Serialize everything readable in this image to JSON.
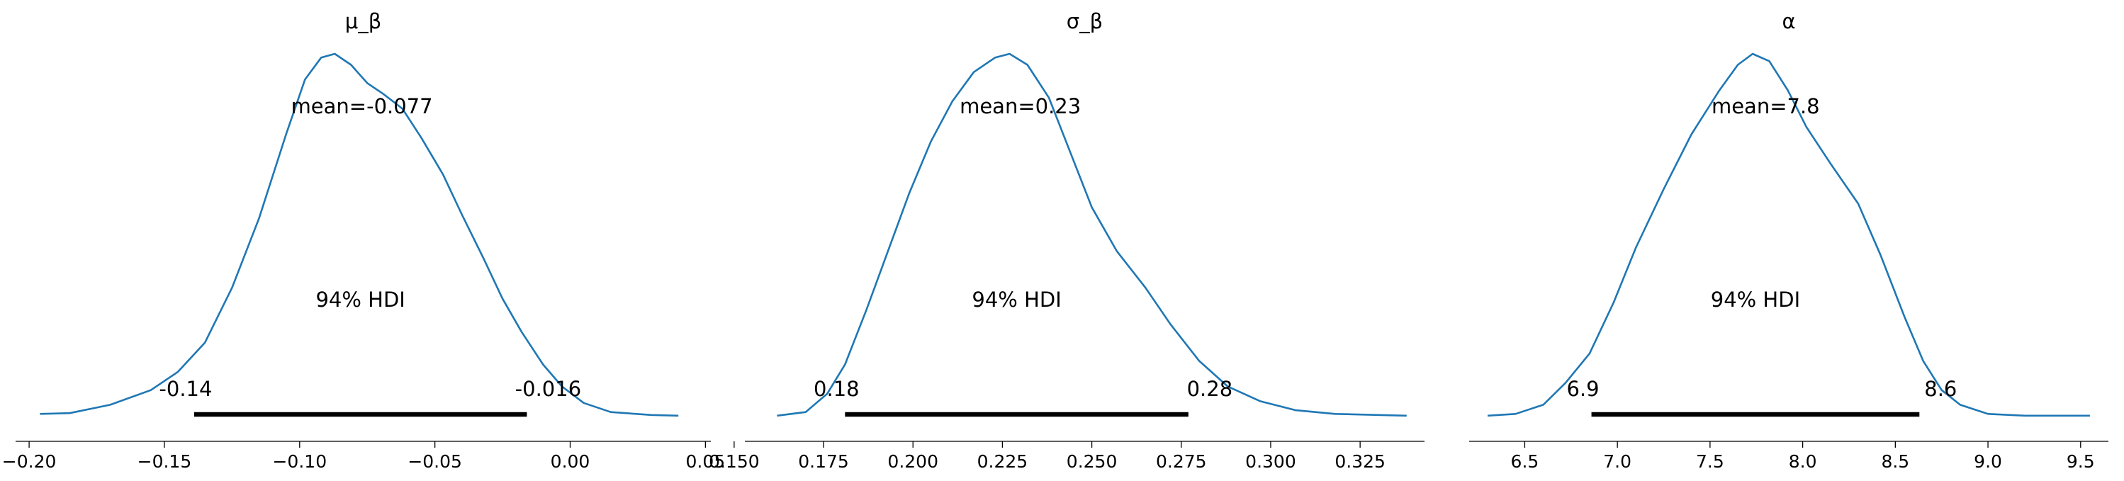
{
  "chart_data": [
    {
      "type": "area",
      "title": "μ_β",
      "xlim": [
        -0.205,
        0.052
      ],
      "ticks": [
        {
          "v": -0.2,
          "label": "−0.20"
        },
        {
          "v": -0.15,
          "label": "−0.15"
        },
        {
          "v": -0.1,
          "label": "−0.10"
        },
        {
          "v": -0.05,
          "label": "−0.05"
        },
        {
          "v": 0.0,
          "label": "0.00"
        },
        {
          "v": 0.05,
          "label": "0.05"
        }
      ],
      "mean": -0.077,
      "mean_label": "mean=-0.077",
      "hdi": [
        -0.139,
        -0.016
      ],
      "hdi_prob_label": "94% HDI",
      "hdi_low_label": "-0.14",
      "hdi_high_label": "-0.016",
      "line_color": "#1f77b4",
      "density": [
        [
          -0.196,
          0.015
        ],
        [
          -0.185,
          0.017
        ],
        [
          -0.17,
          0.04
        ],
        [
          -0.155,
          0.08
        ],
        [
          -0.145,
          0.13
        ],
        [
          -0.135,
          0.21
        ],
        [
          -0.125,
          0.36
        ],
        [
          -0.115,
          0.55
        ],
        [
          -0.105,
          0.78
        ],
        [
          -0.098,
          0.93
        ],
        [
          -0.092,
          0.99
        ],
        [
          -0.087,
          1.0
        ],
        [
          -0.081,
          0.97
        ],
        [
          -0.075,
          0.92
        ],
        [
          -0.069,
          0.89
        ],
        [
          -0.062,
          0.85
        ],
        [
          -0.055,
          0.77
        ],
        [
          -0.047,
          0.67
        ],
        [
          -0.04,
          0.56
        ],
        [
          -0.032,
          0.44
        ],
        [
          -0.025,
          0.33
        ],
        [
          -0.018,
          0.24
        ],
        [
          -0.01,
          0.15
        ],
        [
          -0.003,
          0.09
        ],
        [
          0.005,
          0.045
        ],
        [
          0.015,
          0.02
        ],
        [
          0.03,
          0.012
        ],
        [
          0.04,
          0.01
        ]
      ]
    },
    {
      "type": "area",
      "title": "σ_β",
      "xlim": [
        0.153,
        0.343
      ],
      "ticks": [
        {
          "v": 0.15,
          "label": "0.150"
        },
        {
          "v": 0.175,
          "label": "0.175"
        },
        {
          "v": 0.2,
          "label": "0.200"
        },
        {
          "v": 0.225,
          "label": "0.225"
        },
        {
          "v": 0.25,
          "label": "0.250"
        },
        {
          "v": 0.275,
          "label": "0.275"
        },
        {
          "v": 0.3,
          "label": "0.300"
        },
        {
          "v": 0.325,
          "label": "0.325"
        }
      ],
      "mean": 0.23,
      "mean_label": "mean=0.23",
      "hdi": [
        0.181,
        0.277
      ],
      "hdi_prob_label": "94% HDI",
      "hdi_low_label": "0.18",
      "hdi_high_label": "0.28",
      "line_color": "#1f77b4",
      "density": [
        [
          0.162,
          0.01
        ],
        [
          0.17,
          0.02
        ],
        [
          0.176,
          0.07
        ],
        [
          0.181,
          0.15
        ],
        [
          0.187,
          0.3
        ],
        [
          0.193,
          0.46
        ],
        [
          0.199,
          0.62
        ],
        [
          0.205,
          0.76
        ],
        [
          0.211,
          0.87
        ],
        [
          0.217,
          0.95
        ],
        [
          0.223,
          0.99
        ],
        [
          0.227,
          1.0
        ],
        [
          0.232,
          0.97
        ],
        [
          0.238,
          0.88
        ],
        [
          0.244,
          0.73
        ],
        [
          0.25,
          0.58
        ],
        [
          0.257,
          0.46
        ],
        [
          0.265,
          0.36
        ],
        [
          0.272,
          0.26
        ],
        [
          0.28,
          0.16
        ],
        [
          0.288,
          0.09
        ],
        [
          0.297,
          0.05
        ],
        [
          0.307,
          0.025
        ],
        [
          0.318,
          0.015
        ],
        [
          0.33,
          0.012
        ],
        [
          0.338,
          0.01
        ]
      ]
    },
    {
      "type": "area",
      "title": "α",
      "xlim": [
        6.2,
        9.65
      ],
      "ticks": [
        {
          "v": 6.5,
          "label": "6.5"
        },
        {
          "v": 7.0,
          "label": "7.0"
        },
        {
          "v": 7.5,
          "label": "7.5"
        },
        {
          "v": 8.0,
          "label": "8.0"
        },
        {
          "v": 8.5,
          "label": "8.5"
        },
        {
          "v": 9.0,
          "label": "9.0"
        },
        {
          "v": 9.5,
          "label": "9.5"
        }
      ],
      "mean": 7.8,
      "mean_label": "mean=7.8",
      "hdi": [
        6.86,
        8.63
      ],
      "hdi_prob_label": "94% HDI",
      "hdi_low_label": "6.9",
      "hdi_high_label": "8.6",
      "line_color": "#1f77b4",
      "density": [
        [
          6.3,
          0.01
        ],
        [
          6.45,
          0.015
        ],
        [
          6.6,
          0.04
        ],
        [
          6.72,
          0.1
        ],
        [
          6.85,
          0.18
        ],
        [
          6.98,
          0.32
        ],
        [
          7.1,
          0.47
        ],
        [
          7.25,
          0.63
        ],
        [
          7.4,
          0.78
        ],
        [
          7.55,
          0.9
        ],
        [
          7.65,
          0.97
        ],
        [
          7.73,
          1.0
        ],
        [
          7.82,
          0.98
        ],
        [
          7.92,
          0.9
        ],
        [
          8.02,
          0.8
        ],
        [
          8.15,
          0.7
        ],
        [
          8.3,
          0.59
        ],
        [
          8.42,
          0.45
        ],
        [
          8.55,
          0.28
        ],
        [
          8.65,
          0.16
        ],
        [
          8.75,
          0.08
        ],
        [
          8.85,
          0.04
        ],
        [
          9.0,
          0.015
        ],
        [
          9.2,
          0.01
        ],
        [
          9.55,
          0.01
        ]
      ]
    }
  ]
}
